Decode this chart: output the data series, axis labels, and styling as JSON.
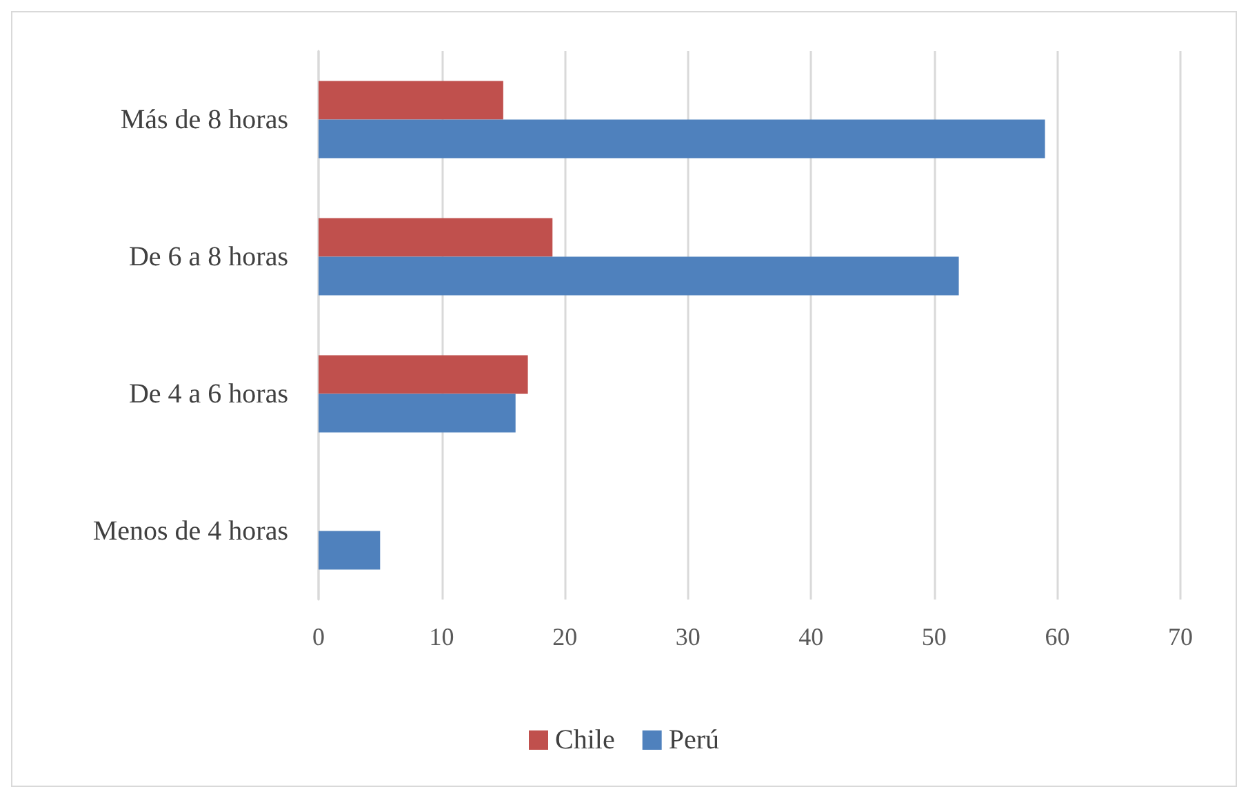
{
  "chart_data": {
    "type": "bar",
    "orientation": "horizontal",
    "categories": [
      "Más de 8 horas",
      "De 6 a 8 horas",
      "De 4 a 6 horas",
      "Menos de 4 horas"
    ],
    "series": [
      {
        "name": "Chile",
        "color": "#c0504d",
        "values": [
          15,
          19,
          17,
          null
        ]
      },
      {
        "name": "Perú",
        "color": "#4f81bd",
        "values": [
          59,
          52,
          16,
          5
        ]
      }
    ],
    "xlim": [
      0,
      70
    ],
    "xticks": [
      0,
      10,
      20,
      30,
      40,
      50,
      60,
      70
    ],
    "grid": "x",
    "legend": "bottom"
  }
}
